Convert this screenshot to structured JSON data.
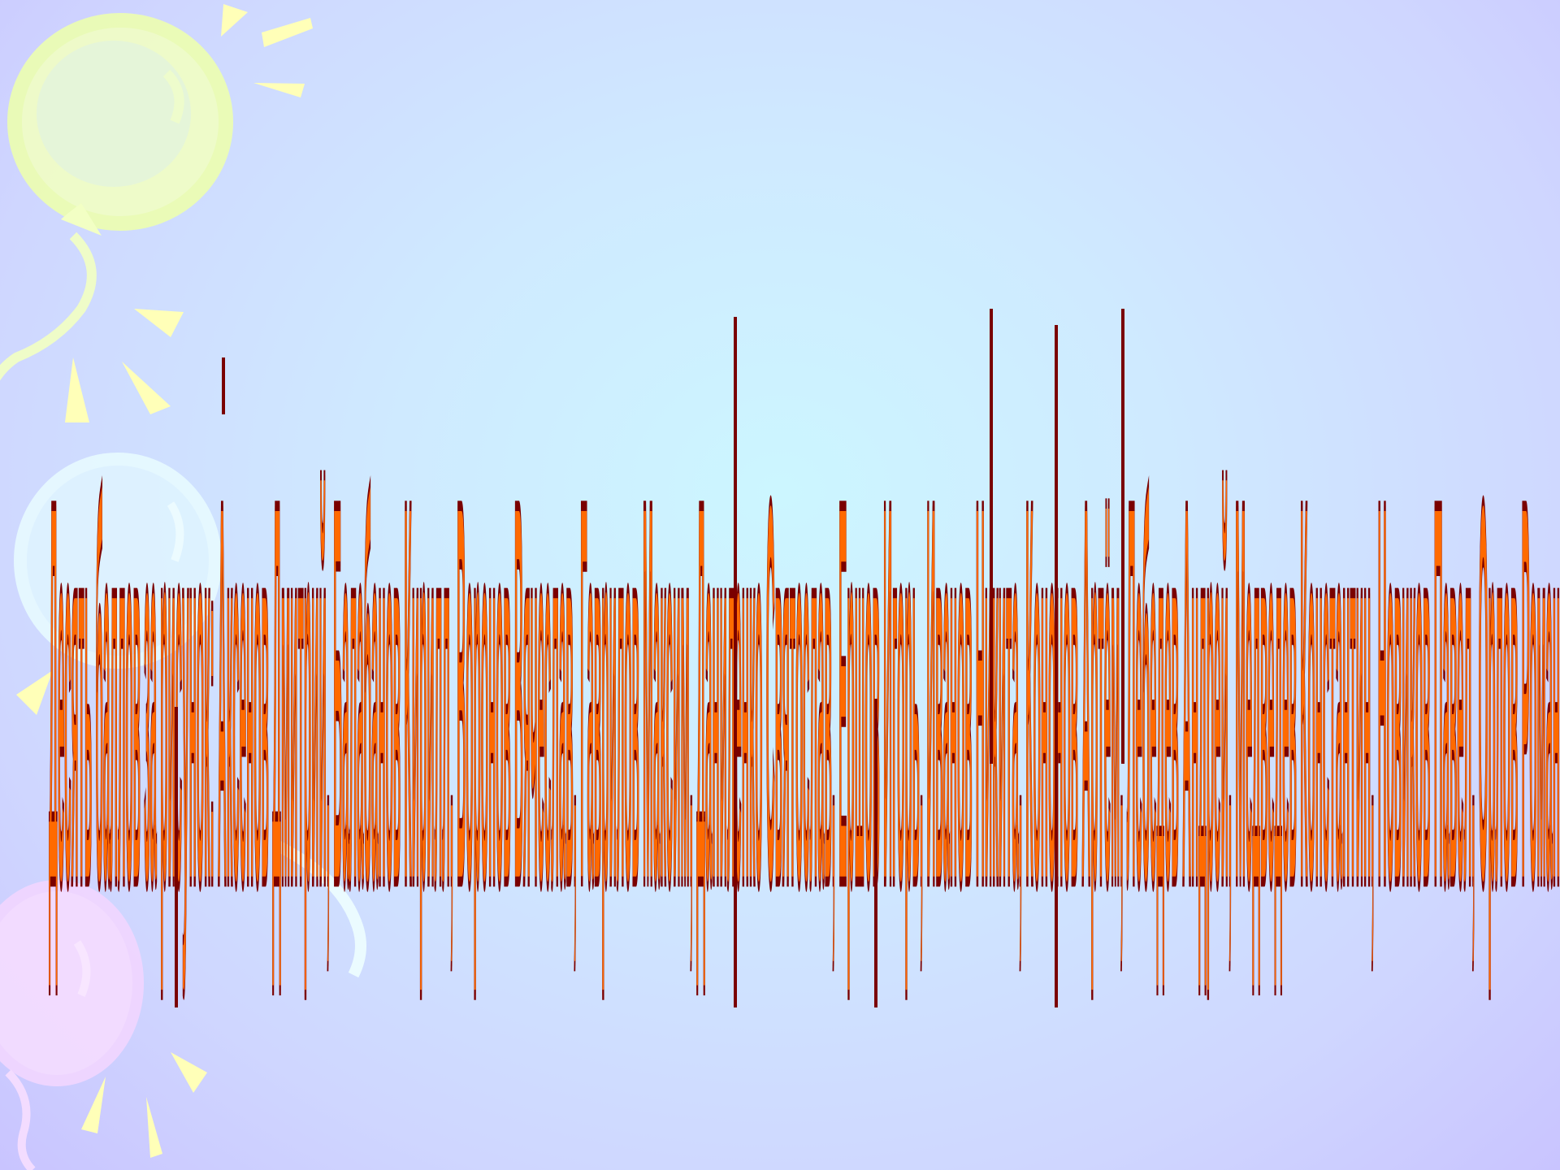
{
  "slide": {
    "title": "Десять баллов за рисунок: Аксенов Дмитрий, Балабанов Кирилл, Воронов Вячеслав, Гаврилов Максим, Даниленко Святослав, Ершов Игорь, Иванов Никита, Кононов Артём, Лебедев Андрей, Медведев Константин, Новиков Павел, Орлов Роман"
  },
  "colors": {
    "background_center": "#ccf6ff",
    "background_edge": "#c9c4ff",
    "title_fill": "#ff6a00",
    "title_stroke": "#7a0000",
    "balloon_yellow": "#f2ffc4",
    "balloon_blue": "#dff4ff",
    "balloon_pink": "#f4dcff",
    "ray_color": "#ffffb8"
  },
  "decor": {
    "balloons": [
      {
        "name": "yellow-balloon",
        "color": "yellow"
      },
      {
        "name": "blue-balloon",
        "color": "blue"
      },
      {
        "name": "pink-balloon",
        "color": "pink"
      }
    ]
  }
}
